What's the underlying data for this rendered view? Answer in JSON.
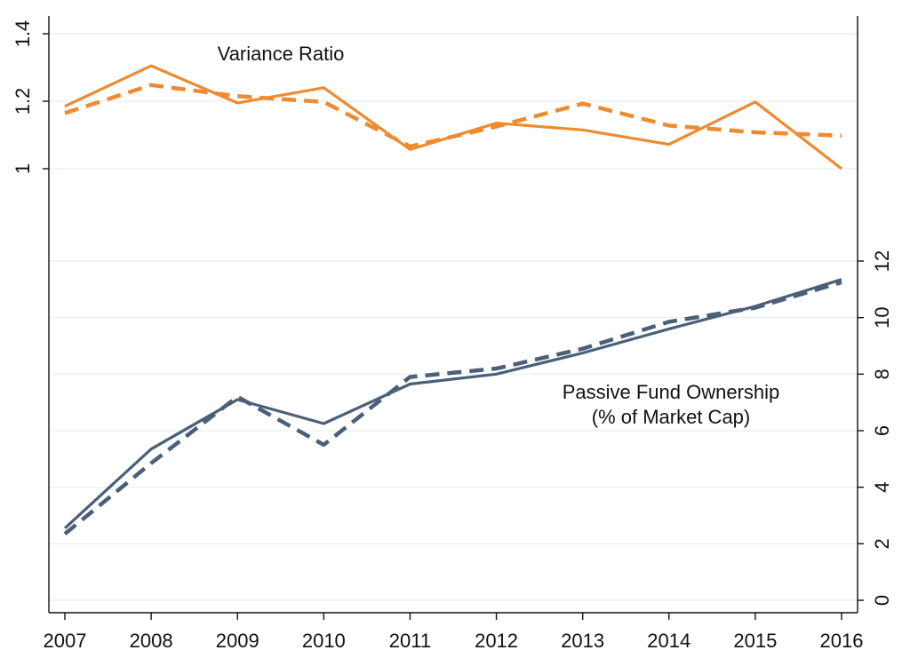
{
  "chart_data": {
    "type": "line",
    "x": [
      2007,
      2008,
      2009,
      2010,
      2011,
      2012,
      2013,
      2014,
      2015,
      2016
    ],
    "x_tick_labels": [
      "2007",
      "2008",
      "2009",
      "2010",
      "2011",
      "2012",
      "2013",
      "2014",
      "2015",
      "2016"
    ],
    "grid": true,
    "legend": "none",
    "panels": [
      {
        "axis": "left",
        "label": "Variance Ratio",
        "ylim": [
          1.0,
          1.4
        ],
        "y_ticks": [
          1,
          1.2,
          1.4
        ],
        "y_tick_labels": [
          "1",
          "1.2",
          "1.4"
        ],
        "color": "#ee8a30",
        "series": [
          {
            "style": "solid",
            "values": [
              1.185,
              1.305,
              1.195,
              1.24,
              1.057,
              1.135,
              1.115,
              1.072,
              1.198,
              1.0
            ]
          },
          {
            "style": "dashed",
            "values": [
              1.165,
              1.248,
              1.215,
              1.198,
              1.066,
              1.125,
              1.193,
              1.128,
              1.108,
              1.098
            ]
          }
        ]
      },
      {
        "axis": "right",
        "label": [
          "Passive Fund Ownership",
          "(% of Market Cap)"
        ],
        "ylim": [
          0,
          12
        ],
        "y_ticks": [
          0,
          2,
          4,
          6,
          8,
          10,
          12
        ],
        "y_tick_labels": [
          "0",
          "2",
          "4",
          "6",
          "8",
          "10",
          "12"
        ],
        "color": "#4a6078",
        "series": [
          {
            "style": "solid",
            "values": [
              2.55,
              5.35,
              7.1,
              6.25,
              7.65,
              8.0,
              8.75,
              9.6,
              10.4,
              11.35
            ]
          },
          {
            "style": "dashed",
            "values": [
              2.35,
              4.85,
              7.2,
              5.5,
              7.9,
              8.2,
              8.9,
              9.85,
              10.35,
              11.25
            ]
          }
        ]
      }
    ]
  }
}
